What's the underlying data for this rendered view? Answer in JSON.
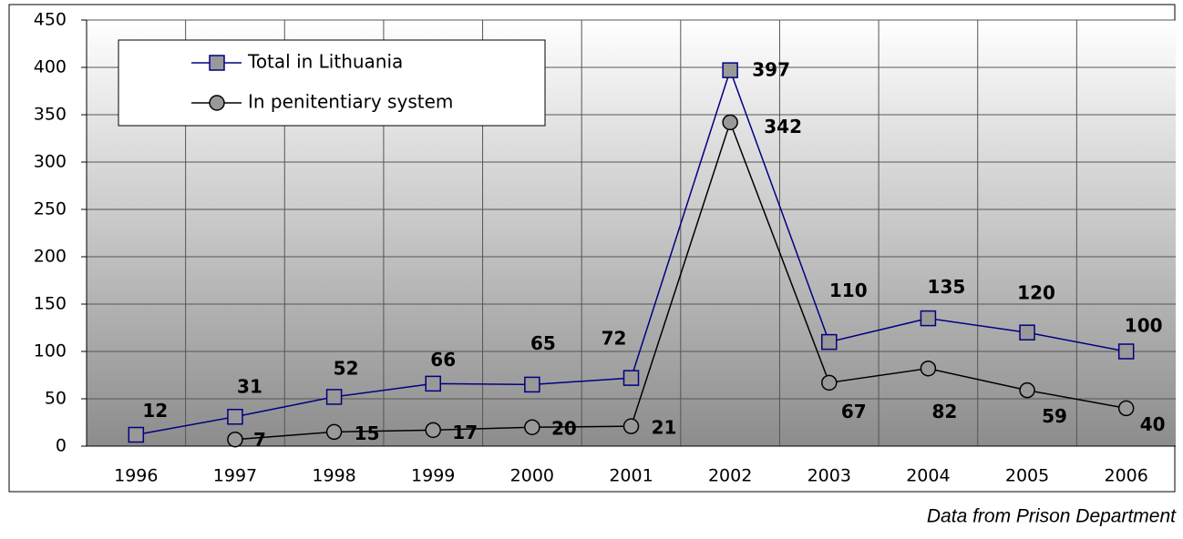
{
  "chart_data": {
    "type": "line",
    "categories": [
      "1996",
      "1997",
      "1998",
      "1999",
      "2000",
      "2001",
      "2002",
      "2003",
      "2004",
      "2005",
      "2006"
    ],
    "series": [
      {
        "name": "Total in Lithuania",
        "color": "#000080",
        "marker": "square",
        "values": [
          12,
          31,
          52,
          66,
          65,
          72,
          397,
          110,
          135,
          120,
          100
        ]
      },
      {
        "name": "In penitentiary system",
        "color": "#000000",
        "marker": "circle",
        "values": [
          null,
          7,
          15,
          17,
          20,
          21,
          342,
          67,
          82,
          59,
          40
        ]
      }
    ],
    "ylim": [
      0,
      450
    ],
    "yticks": [
      0,
      50,
      100,
      150,
      200,
      250,
      300,
      350,
      400,
      450
    ],
    "grid": true,
    "legend": "upper left",
    "source": "Data from Prison Department"
  }
}
